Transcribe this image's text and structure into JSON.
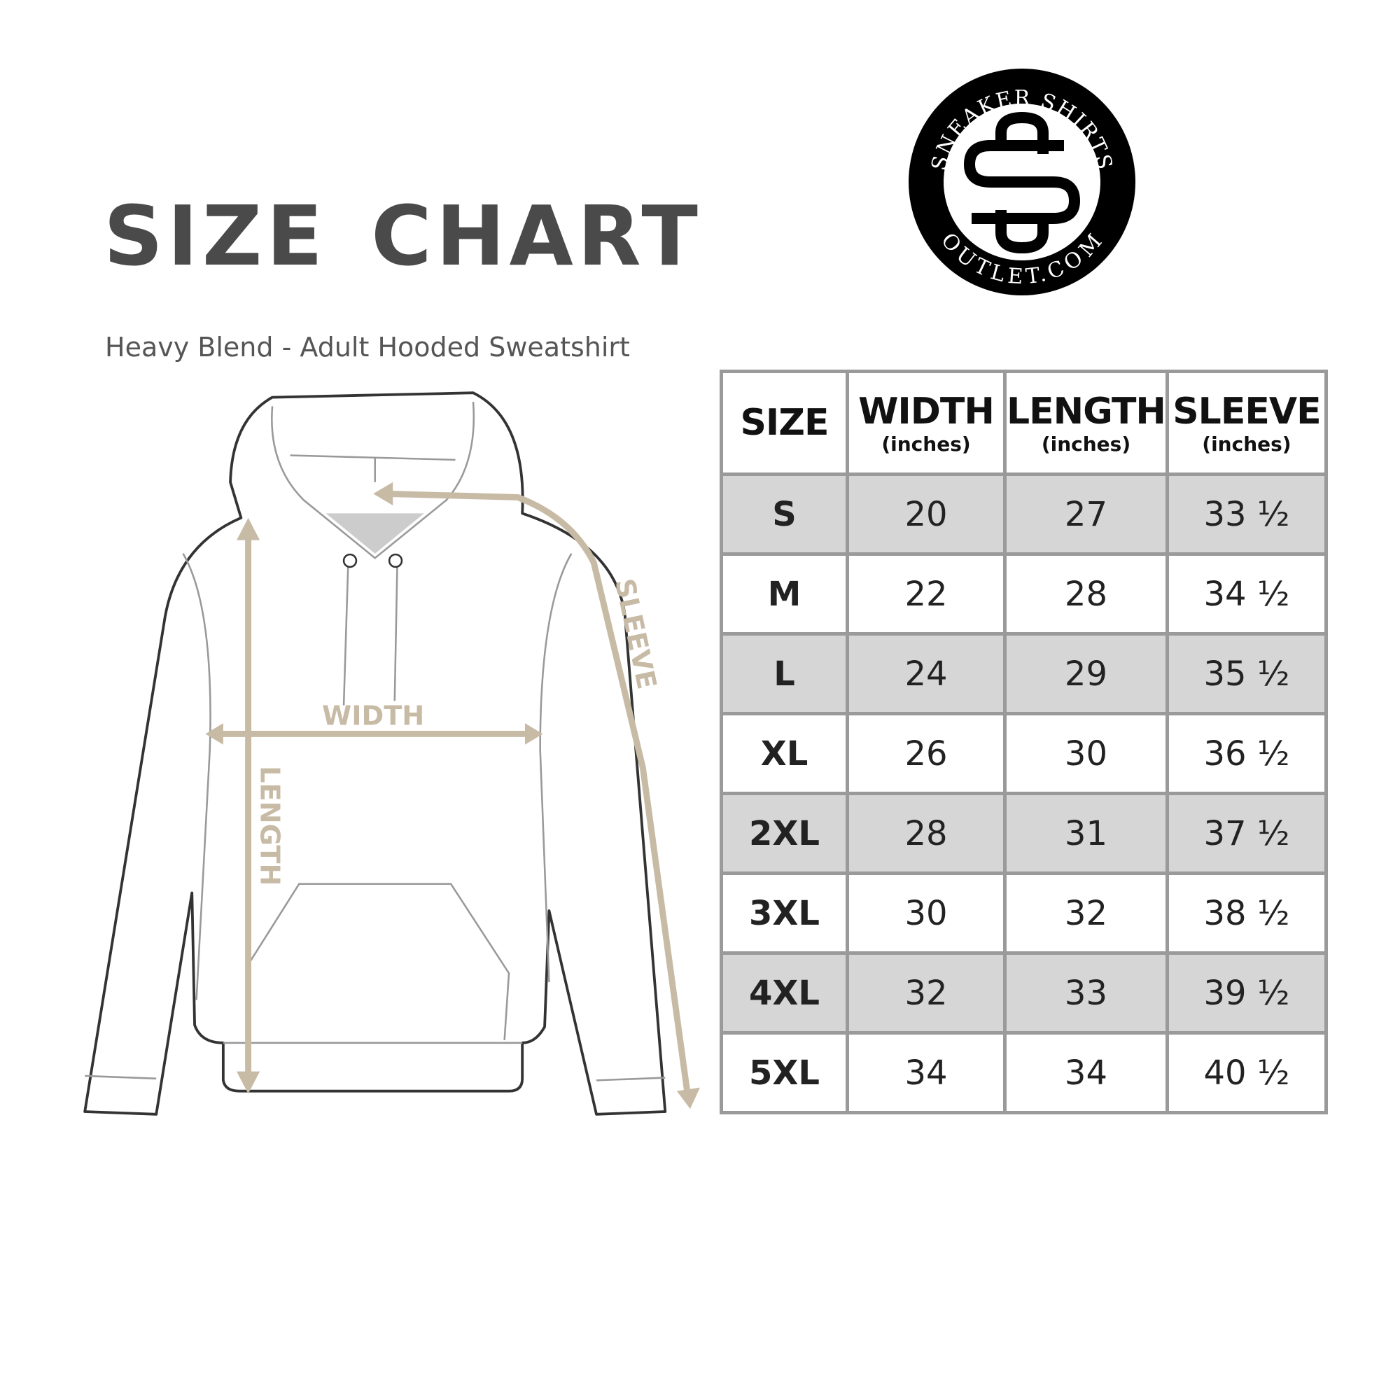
{
  "title": "SIZE CHART",
  "subtitle": "Heavy Blend - Adult Hooded Sweatshirt",
  "logo": {
    "top_text": "SNEAKER SHIRTS",
    "bottom_text": "OUTLET.COM",
    "monogram": "SS"
  },
  "diagram": {
    "width_label": "WIDTH",
    "length_label": "LENGTH",
    "sleeve_label": "SLEEVE",
    "arrow_color": "#c8bba6",
    "outline_color": "#333333"
  },
  "table": {
    "headers": [
      {
        "label": "SIZE",
        "unit": ""
      },
      {
        "label": "WIDTH",
        "unit": "(inches)"
      },
      {
        "label": "LENGTH",
        "unit": "(inches)"
      },
      {
        "label": "SLEEVE",
        "unit": "(inches)"
      }
    ],
    "rows": [
      [
        "S",
        "20",
        "27",
        "33 ½"
      ],
      [
        "M",
        "22",
        "28",
        "34 ½"
      ],
      [
        "L",
        "24",
        "29",
        "35 ½"
      ],
      [
        "XL",
        "26",
        "30",
        "36 ½"
      ],
      [
        "2XL",
        "28",
        "31",
        "37 ½"
      ],
      [
        "3XL",
        "30",
        "32",
        "38 ½"
      ],
      [
        "4XL",
        "32",
        "33",
        "39 ½"
      ],
      [
        "5XL",
        "34",
        "34",
        "40 ½"
      ]
    ],
    "shade_color": "#d6d6d6",
    "border_color": "#9a9a9a"
  }
}
